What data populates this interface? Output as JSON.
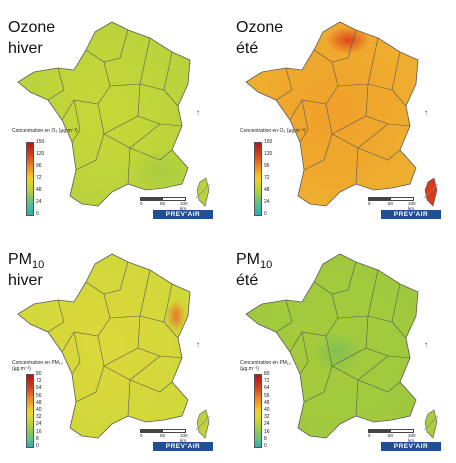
{
  "panels": [
    {
      "id": "ozone-hiver",
      "title_main": "Ozone",
      "title_sub": "",
      "title_line2": "hiver",
      "legend_caption": "Concentration en O₃ (µg.m⁻³)",
      "ticks": [
        "150",
        "120",
        "96",
        "72",
        "48",
        "24",
        "0"
      ],
      "colors": [
        "#b01818",
        "#d8401c",
        "#f08c20",
        "#f4d224",
        "#b2d23a",
        "#5cc28c",
        "#26b0b0"
      ],
      "fill_center": "#c6d836",
      "fill_edge": "#b8d23e",
      "hot": "#a8cc3e",
      "corsica": "#b8d23e"
    },
    {
      "id": "ozone-ete",
      "title_main": "Ozone",
      "title_sub": "",
      "title_line2": "été",
      "legend_caption": "Concentration en O₃ (µg.m⁻³)",
      "ticks": [
        "150",
        "120",
        "96",
        "72",
        "48",
        "24",
        "0"
      ],
      "colors": [
        "#b01818",
        "#d8401c",
        "#f08c20",
        "#f4d224",
        "#b2d23a",
        "#5cc28c",
        "#26b0b0"
      ],
      "fill_center": "#f0a02a",
      "fill_edge": "#eeb030",
      "hot": "#e0401c",
      "corsica": "#d83a1c"
    },
    {
      "id": "pm10-hiver",
      "title_main": "PM",
      "title_sub": "10",
      "title_line2": "hiver",
      "legend_caption": "Concentration en PM₁₀ (µg.m⁻³)",
      "ticks": [
        "80",
        "72",
        "64",
        "56",
        "48",
        "40",
        "32",
        "24",
        "16",
        "8",
        "0"
      ],
      "colors": [
        "#b01818",
        "#c82a1c",
        "#dc4a1e",
        "#ec7a22",
        "#f4a624",
        "#f4d224",
        "#d6da34",
        "#b2d23a",
        "#86c85a",
        "#5cc28c",
        "#26b0b0"
      ],
      "fill_center": "#dcd83a",
      "fill_edge": "#cfd83a",
      "hot": "#e8702a",
      "corsica": "#c0d23a"
    },
    {
      "id": "pm10-ete",
      "title_main": "PM",
      "title_sub": "10",
      "title_line2": "été",
      "legend_caption": "Concentration en PM₁₀ (µg.m⁻³)",
      "ticks": [
        "80",
        "72",
        "64",
        "56",
        "48",
        "40",
        "32",
        "24",
        "16",
        "8",
        "0"
      ],
      "colors": [
        "#b01818",
        "#c82a1c",
        "#dc4a1e",
        "#ec7a22",
        "#f4a624",
        "#f4d224",
        "#d6da34",
        "#b2d23a",
        "#86c85a",
        "#5cc28c",
        "#26b0b0"
      ],
      "fill_center": "#a6cc3c",
      "fill_edge": "#9ec83e",
      "hot": "#7fbe52",
      "corsica": "#a8cc3e"
    }
  ],
  "scale": {
    "labels": [
      "0",
      "50",
      "100 km"
    ]
  },
  "brand": "PREV'AIR",
  "north_icon": "north-arrow-icon"
}
